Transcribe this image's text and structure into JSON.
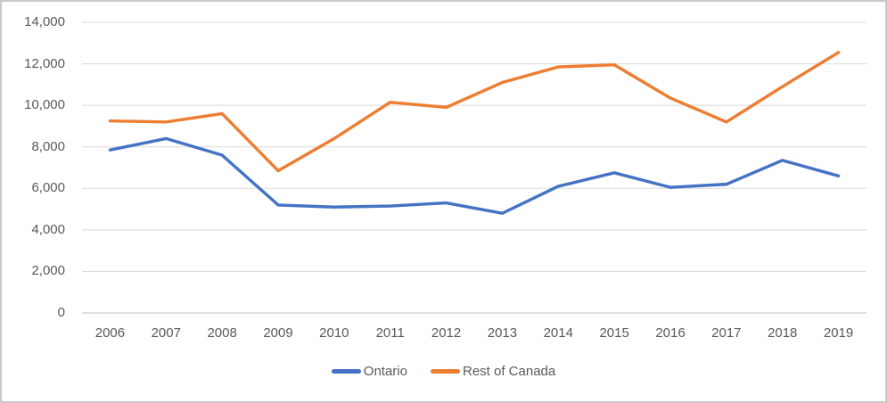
{
  "chart_data": {
    "type": "line",
    "title": "",
    "categories": [
      "2006",
      "2007",
      "2008",
      "2009",
      "2010",
      "2011",
      "2012",
      "2013",
      "2014",
      "2015",
      "2016",
      "2017",
      "2018",
      "2019"
    ],
    "series": [
      {
        "name": "Ontario",
        "color": "#4472C4",
        "values": [
          7850,
          8400,
          7600,
          5200,
          5100,
          5150,
          5300,
          4800,
          6100,
          6750,
          6050,
          6200,
          7350,
          6600
        ]
      },
      {
        "name": "Rest of Canada",
        "color": "#ED7D31",
        "values": [
          9250,
          9200,
          9600,
          6850,
          8400,
          10150,
          9900,
          11100,
          11850,
          11950,
          10350,
          9200,
          10900,
          12550
        ]
      }
    ],
    "ylim": [
      0,
      14000
    ],
    "y_ticks": [
      {
        "value": 0,
        "label": "0"
      },
      {
        "value": 2000,
        "label": "2,000"
      },
      {
        "value": 4000,
        "label": "4,000"
      },
      {
        "value": 6000,
        "label": "6,000"
      },
      {
        "value": 8000,
        "label": "8,000"
      },
      {
        "value": 10000,
        "label": "10,000"
      },
      {
        "value": 12000,
        "label": "12,000"
      },
      {
        "value": 14000,
        "label": "14,000"
      }
    ],
    "grid": true,
    "legend_position": "bottom"
  },
  "colors": {
    "gridline": "#D9D9D9",
    "axis_line": "#BFBFBF",
    "tick_label": "#595959",
    "background": "#FFFFFF",
    "border": "#C9C9C9"
  }
}
